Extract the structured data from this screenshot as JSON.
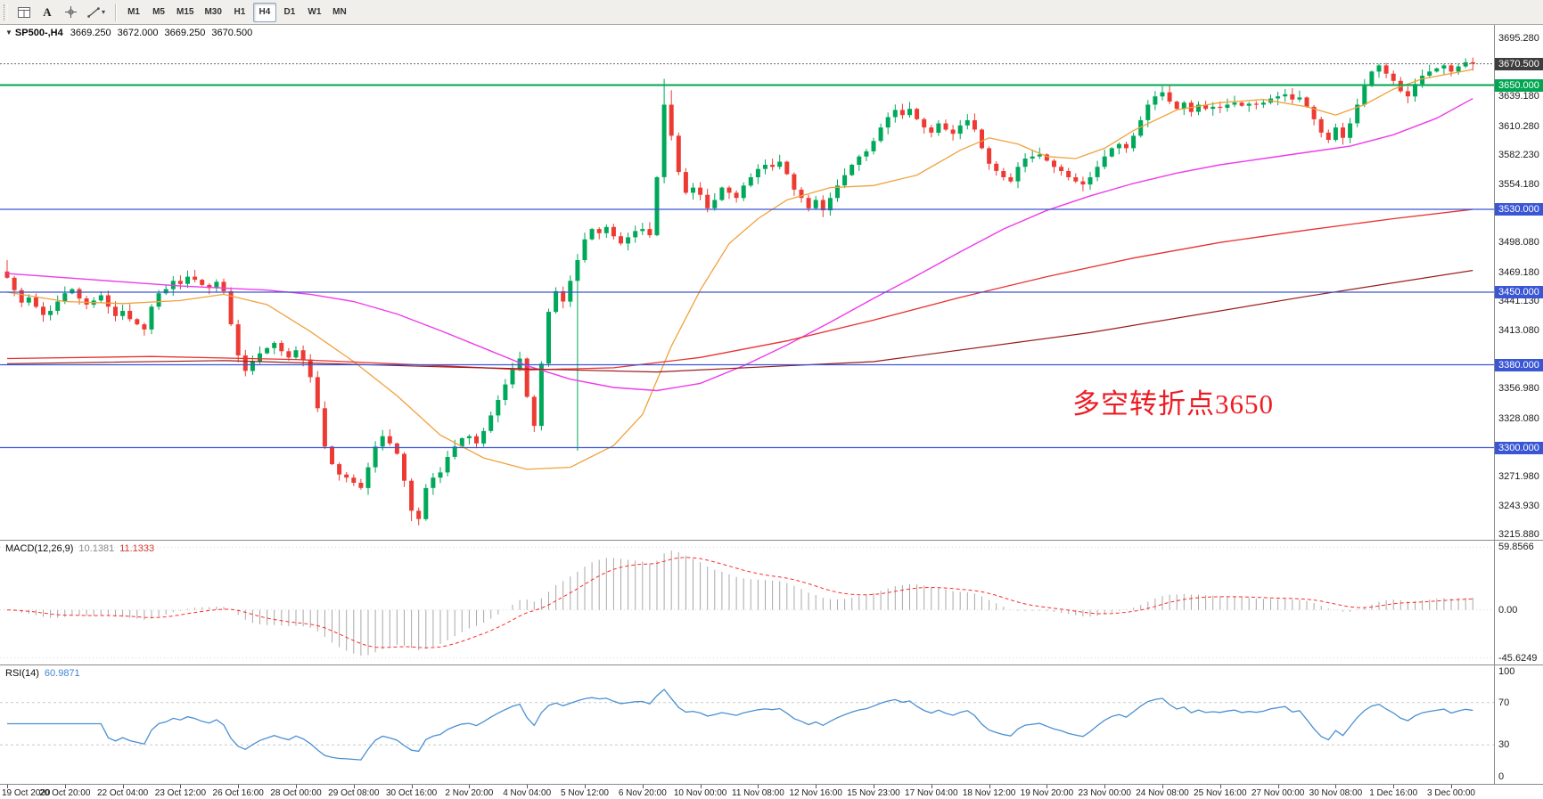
{
  "toolbar": {
    "a_label": "A",
    "timeframes": [
      "M1",
      "M5",
      "M15",
      "M30",
      "H1",
      "H4",
      "D1",
      "W1",
      "MN"
    ],
    "active_timeframe": "H4"
  },
  "chart_title": {
    "symbol": "SP500-,H4",
    "open": "3669.250",
    "high": "3672.000",
    "low": "3669.250",
    "close": "3670.500"
  },
  "annotation": {
    "text": "多空转折点3650",
    "color": "#ed1c24"
  },
  "time_axis": {
    "labels": [
      "19 Oct 2020",
      "20 Oct 20:00",
      "22 Oct 04:00",
      "23 Oct 12:00",
      "26 Oct 16:00",
      "28 Oct 00:00",
      "29 Oct 08:00",
      "30 Oct 16:00",
      "2 Nov 20:00",
      "4 Nov 04:00",
      "5 Nov 12:00",
      "6 Nov 20:00",
      "10 Nov 00:00",
      "11 Nov 08:00",
      "12 Nov 16:00",
      "15 Nov 23:00",
      "17 Nov 04:00",
      "18 Nov 12:00",
      "19 Nov 20:00",
      "23 Nov 00:00",
      "24 Nov 08:00",
      "25 Nov 16:00",
      "27 Nov 00:00",
      "30 Nov 08:00",
      "1 Dec 16:00",
      "3 Dec 00:00"
    ],
    "bars_per_label": 8
  },
  "chart_data": {
    "type": "candlestick",
    "symbol": "SP500-",
    "timeframe": "H4",
    "up_color": "#00A85A",
    "down_color": "#ED3B33",
    "y_axis": {
      "min": 3211,
      "max": 3708,
      "labels": [
        {
          "v": 3695.28,
          "t": "3695.280"
        },
        {
          "v": 3639.18,
          "t": "3639.180"
        },
        {
          "v": 3610.28,
          "t": "3610.280"
        },
        {
          "v": 3582.23,
          "t": "3582.230"
        },
        {
          "v": 3554.18,
          "t": "3554.180"
        },
        {
          "v": 3498.08,
          "t": "3498.080"
        },
        {
          "v": 3469.18,
          "t": "3469.180"
        },
        {
          "v": 3441.13,
          "t": "3441.130"
        },
        {
          "v": 3413.08,
          "t": "3413.080"
        },
        {
          "v": 3356.98,
          "t": "3356.980"
        },
        {
          "v": 3328.08,
          "t": "3328.080"
        },
        {
          "v": 3271.98,
          "t": "3271.980"
        },
        {
          "v": 3243.93,
          "t": "3243.930"
        },
        {
          "v": 3215.88,
          "t": "3215.880"
        }
      ]
    },
    "first_open": 3470,
    "closes": [
      3464,
      3452,
      3440,
      3445,
      3436,
      3428,
      3432,
      3441,
      3449,
      3453,
      3444,
      3438,
      3442,
      3447,
      3436,
      3427,
      3432,
      3424,
      3419,
      3414,
      3436,
      3449,
      3453,
      3461,
      3458,
      3465,
      3462,
      3457,
      3454,
      3460,
      3451,
      3419,
      3389,
      3374,
      3383,
      3391,
      3396,
      3401,
      3393,
      3387,
      3394,
      3385,
      3368,
      3338,
      3301,
      3284,
      3274,
      3271,
      3266,
      3261,
      3281,
      3301,
      3311,
      3304,
      3294,
      3268,
      3239,
      3231,
      3261,
      3271,
      3276,
      3291,
      3301,
      3309,
      3311,
      3304,
      3316,
      3331,
      3346,
      3361,
      3376,
      3386,
      3349,
      3321,
      3381,
      3431,
      3451,
      3441,
      3461,
      3481,
      3501,
      3511,
      3507,
      3513,
      3504,
      3497,
      3503,
      3509,
      3511,
      3505,
      3561,
      3631,
      3601,
      3566,
      3546,
      3551,
      3544,
      3531,
      3539,
      3551,
      3546,
      3541,
      3553,
      3561,
      3569,
      3573,
      3571,
      3576,
      3564,
      3549,
      3541,
      3531,
      3539,
      3529,
      3541,
      3553,
      3563,
      3573,
      3581,
      3586,
      3596,
      3609,
      3619,
      3626,
      3621,
      3627,
      3617,
      3609,
      3604,
      3613,
      3607,
      3603,
      3611,
      3616,
      3607,
      3589,
      3574,
      3567,
      3561,
      3557,
      3571,
      3579,
      3581,
      3583,
      3577,
      3571,
      3567,
      3561,
      3557,
      3554,
      3561,
      3571,
      3581,
      3589,
      3593,
      3589,
      3601,
      3616,
      3631,
      3639,
      3643,
      3634,
      3627,
      3633,
      3624,
      3631,
      3627,
      3629,
      3628,
      3631,
      3633,
      3630,
      3632,
      3631,
      3633,
      3637,
      3639,
      3641,
      3636,
      3638,
      3629,
      3617,
      3604,
      3597,
      3609,
      3599,
      3613,
      3631,
      3649,
      3663,
      3669,
      3661,
      3654,
      3644,
      3639,
      3651,
      3659,
      3663,
      3666,
      3669,
      3663,
      3668,
      3672,
      3670.5
    ],
    "wick_overrides": [
      {
        "i": 0,
        "high": 3481
      },
      {
        "i": 56,
        "low": 3229
      },
      {
        "i": 57,
        "low": 3225
      },
      {
        "i": 79,
        "low": 3297
      },
      {
        "i": 91,
        "high": 3656
      },
      {
        "i": 92,
        "high": 3645
      }
    ],
    "hlines": [
      {
        "price": 3670.5,
        "label": "3670.500",
        "color": "#6a6a6a",
        "width": 1,
        "dash": "2 2",
        "box": "#3d3d3d"
      },
      {
        "price": 3650,
        "label": "3650.000",
        "color": "#00A651",
        "width": 2,
        "dash": "",
        "box": "#00A651"
      },
      {
        "price": 3530,
        "label": "3530.000",
        "color": "#3A56D4",
        "width": 1.2,
        "dash": "",
        "box": "#3A56D4"
      },
      {
        "price": 3450,
        "label": "3450.000",
        "color": "#3A56D4",
        "width": 1.2,
        "dash": "",
        "box": "#3A56D4"
      },
      {
        "price": 3380,
        "label": "3380.000",
        "color": "#3A56D4",
        "width": 1.2,
        "dash": "",
        "box": "#3A56D4"
      },
      {
        "price": 3300,
        "label": "3300.000",
        "color": "#3A56D4",
        "width": 1.2,
        "dash": "",
        "box": "#3A56D4"
      }
    ],
    "ma_lines": [
      {
        "name": "ma-fast-orange",
        "color": "#EFA23B",
        "width": 1.3,
        "anchors": [
          [
            0,
            3450
          ],
          [
            8,
            3441
          ],
          [
            16,
            3439
          ],
          [
            24,
            3442
          ],
          [
            30,
            3448
          ],
          [
            36,
            3438
          ],
          [
            42,
            3412
          ],
          [
            48,
            3383
          ],
          [
            54,
            3350
          ],
          [
            60,
            3312
          ],
          [
            66,
            3290
          ],
          [
            72,
            3279
          ],
          [
            78,
            3281
          ],
          [
            84,
            3302
          ],
          [
            88,
            3332
          ],
          [
            92,
            3398
          ],
          [
            96,
            3452
          ],
          [
            100,
            3497
          ],
          [
            104,
            3521
          ],
          [
            108,
            3539
          ],
          [
            114,
            3551
          ],
          [
            120,
            3553
          ],
          [
            126,
            3563
          ],
          [
            132,
            3587
          ],
          [
            136,
            3599
          ],
          [
            140,
            3593
          ],
          [
            144,
            3581
          ],
          [
            148,
            3579
          ],
          [
            152,
            3589
          ],
          [
            156,
            3606
          ],
          [
            162,
            3626
          ],
          [
            168,
            3633
          ],
          [
            174,
            3636
          ],
          [
            180,
            3629
          ],
          [
            184,
            3621
          ],
          [
            188,
            3631
          ],
          [
            192,
            3646
          ],
          [
            196,
            3656
          ],
          [
            203,
            3665
          ]
        ]
      },
      {
        "name": "ma-medium-magenta",
        "color": "#EE3BEA",
        "width": 1.4,
        "anchors": [
          [
            0,
            3468
          ],
          [
            12,
            3462
          ],
          [
            24,
            3456
          ],
          [
            36,
            3452
          ],
          [
            42,
            3448
          ],
          [
            48,
            3441
          ],
          [
            54,
            3429
          ],
          [
            60,
            3413
          ],
          [
            66,
            3396
          ],
          [
            72,
            3379
          ],
          [
            78,
            3366
          ],
          [
            84,
            3358
          ],
          [
            90,
            3355
          ],
          [
            96,
            3362
          ],
          [
            102,
            3379
          ],
          [
            108,
            3399
          ],
          [
            114,
            3421
          ],
          [
            120,
            3444
          ],
          [
            126,
            3466
          ],
          [
            132,
            3489
          ],
          [
            138,
            3511
          ],
          [
            144,
            3529
          ],
          [
            150,
            3543
          ],
          [
            156,
            3555
          ],
          [
            162,
            3565
          ],
          [
            168,
            3573
          ],
          [
            174,
            3579
          ],
          [
            180,
            3585
          ],
          [
            186,
            3591
          ],
          [
            192,
            3602
          ],
          [
            198,
            3618
          ],
          [
            203,
            3637
          ]
        ]
      },
      {
        "name": "ma-slow-red",
        "color": "#E93030",
        "width": 1.3,
        "anchors": [
          [
            0,
            3386
          ],
          [
            20,
            3388
          ],
          [
            40,
            3385
          ],
          [
            60,
            3379
          ],
          [
            72,
            3375
          ],
          [
            84,
            3377
          ],
          [
            96,
            3387
          ],
          [
            108,
            3403
          ],
          [
            120,
            3423
          ],
          [
            132,
            3445
          ],
          [
            144,
            3465
          ],
          [
            156,
            3483
          ],
          [
            168,
            3498
          ],
          [
            180,
            3510
          ],
          [
            192,
            3521
          ],
          [
            203,
            3530
          ]
        ]
      },
      {
        "name": "ma-slowest-darkred",
        "color": "#9A1B1B",
        "width": 1.2,
        "anchors": [
          [
            0,
            3381
          ],
          [
            30,
            3384
          ],
          [
            60,
            3378
          ],
          [
            90,
            3373
          ],
          [
            120,
            3383
          ],
          [
            150,
            3411
          ],
          [
            180,
            3446
          ],
          [
            203,
            3471
          ]
        ]
      }
    ],
    "indicators": {
      "macd": {
        "label": "MACD(12,26,9)",
        "value_main": "10.1381",
        "value_signal": "11.1333",
        "fast": 12,
        "slow": 26,
        "signal": 9,
        "axis_labels": [
          "59.8566",
          "0.00",
          "-45.6249"
        ],
        "axis_values": [
          59.8566,
          0,
          -45.6249
        ],
        "plot_range": [
          -52,
          66
        ],
        "hist_color": "#A8A8A8",
        "signal_color": "#FF2A2A"
      },
      "rsi": {
        "label": "RSI(14)",
        "value": "60.9871",
        "period": 14,
        "levels": [
          70,
          30
        ],
        "axis_labels": [
          "100",
          "70",
          "30",
          "0"
        ],
        "axis_values": [
          100,
          70,
          30,
          0
        ],
        "plot_range": [
          0,
          100
        ],
        "color": "#4A90D2"
      }
    }
  }
}
